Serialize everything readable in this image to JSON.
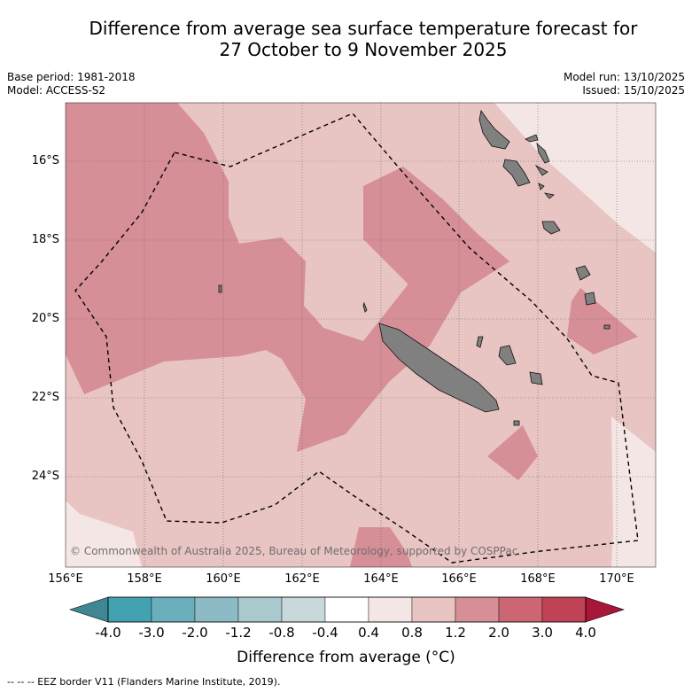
{
  "title": {
    "line1": "Difference from average sea surface temperature forecast for",
    "line2": "27 October to 9 November 2025"
  },
  "meta": {
    "base_period": "Base period: 1981-2018",
    "model": "Model: ACCESS-S2",
    "model_run": "Model run: 13/10/2025",
    "issued": "Issued: 15/10/2025"
  },
  "map": {
    "lat_ticks": [
      "16°S",
      "18°S",
      "20°S",
      "22°S",
      "24°S"
    ],
    "lon_ticks": [
      "156°E",
      "158°E",
      "160°E",
      "162°E",
      "164°E",
      "166°E",
      "168°E",
      "170°E"
    ],
    "copyright": "© Commonwealth of Australia 2025, Bureau of Meteorology, supported by COSPPac",
    "land_color": "#808080",
    "eez_line": "dashed"
  },
  "colorbar": {
    "ticks": [
      "-4.0",
      "-3.0",
      "-2.0",
      "-1.2",
      "-0.8",
      "-0.4",
      "0.4",
      "0.8",
      "1.2",
      "2.0",
      "3.0",
      "4.0"
    ],
    "colors": [
      "#43a2b1",
      "#6aaebb",
      "#8cbac5",
      "#a9c9cd",
      "#c9d8da",
      "#ffffff",
      "#f5e6e6",
      "#e8c4c2",
      "#d68e97",
      "#cc6673",
      "#bf4354"
    ],
    "under_color": "#3f8793",
    "over_color": "#a8163a",
    "label": "Difference from average (°C)"
  },
  "legend": {
    "eez": "-- -- -- EEZ border V11 (Flanders Marine Institute, 2019)."
  }
}
